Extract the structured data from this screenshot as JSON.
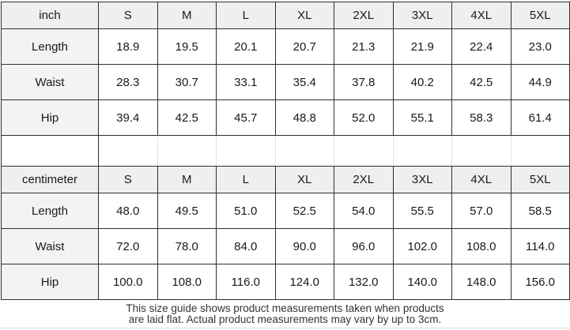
{
  "size_guide": {
    "columns": [
      "S",
      "M",
      "L",
      "XL",
      "2XL",
      "3XL",
      "4XL",
      "5XL"
    ],
    "inch_table": {
      "unit_label": "inch",
      "rows": [
        {
          "label": "Length",
          "values": [
            "18.9",
            "19.5",
            "20.1",
            "20.7",
            "21.3",
            "21.9",
            "22.4",
            "23.0"
          ]
        },
        {
          "label": "Waist",
          "values": [
            "28.3",
            "30.7",
            "33.1",
            "35.4",
            "37.8",
            "40.2",
            "42.5",
            "44.9"
          ]
        },
        {
          "label": "Hip",
          "values": [
            "39.4",
            "42.5",
            "45.7",
            "48.8",
            "52.0",
            "55.1",
            "58.3",
            "61.4"
          ]
        }
      ]
    },
    "centimeter_table": {
      "unit_label": "centimeter",
      "rows": [
        {
          "label": "Length",
          "values": [
            "48.0",
            "49.5",
            "51.0",
            "52.5",
            "54.0",
            "55.5",
            "57.0",
            "58.5"
          ]
        },
        {
          "label": "Waist",
          "values": [
            "72.0",
            "78.0",
            "84.0",
            "90.0",
            "96.0",
            "102.0",
            "108.0",
            "114.0"
          ]
        },
        {
          "label": "Hip",
          "values": [
            "100.0",
            "108.0",
            "116.0",
            "124.0",
            "132.0",
            "140.0",
            "148.0",
            "156.0"
          ]
        }
      ]
    },
    "footer_note_line1": "This size guide shows product measurements taken when products",
    "footer_note_line2": "are laid flat. Actual product measurements may vary by up to 3cm.",
    "colors": {
      "header_bg": "#efefef",
      "label_bg": "#f3f3f3",
      "border": "#2f2f2f",
      "spacer_border": "#dbe3ee",
      "bottom_line": "#d9dee4"
    }
  }
}
